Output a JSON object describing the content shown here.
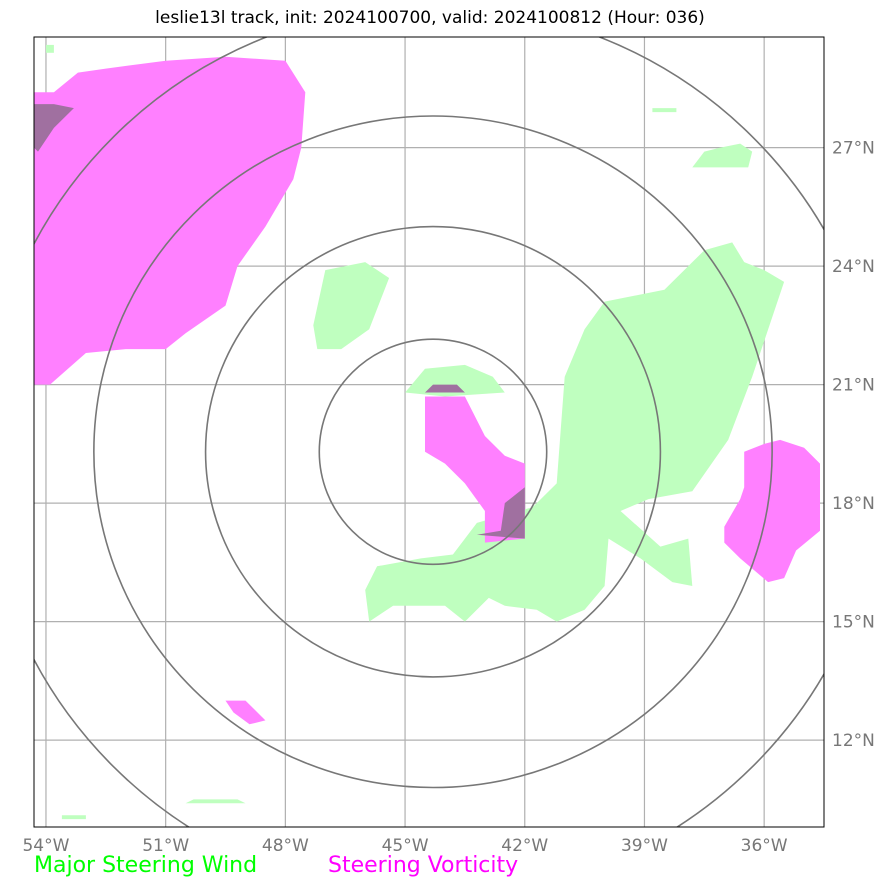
{
  "title": "leslie13l track, init: 2024100700, valid: 2024100812 (Hour: 036)",
  "map": {
    "lon_range": [
      -54.3,
      -34.5
    ],
    "lat_range": [
      9.8,
      29.8
    ],
    "lon_ticks": [
      {
        "value": -54,
        "label": "54°W"
      },
      {
        "value": -51,
        "label": "51°W"
      },
      {
        "value": -48,
        "label": "48°W"
      },
      {
        "value": -45,
        "label": "45°W"
      },
      {
        "value": -42,
        "label": "42°W"
      },
      {
        "value": -39,
        "label": "39°W"
      },
      {
        "value": -36,
        "label": "36°W"
      }
    ],
    "lat_ticks": [
      {
        "value": 12,
        "label": "12°N"
      },
      {
        "value": 15,
        "label": "15°N"
      },
      {
        "value": 18,
        "label": "18°N"
      },
      {
        "value": 21,
        "label": "21°N"
      },
      {
        "value": 24,
        "label": "24°N"
      },
      {
        "value": 27,
        "label": "27°N"
      }
    ],
    "storm_center": {
      "lon": -44.3,
      "lat": 19.3
    },
    "range_rings_deg": [
      2.85,
      5.7,
      8.5,
      11.3
    ],
    "colors": {
      "wind": "#bfffbf",
      "vorticity": "#ff80ff",
      "overlap": "#a070a0",
      "ring": "#777777",
      "grid": "#b0b0b0"
    },
    "wind_regions": [
      [
        [
          -45.0,
          20.8
        ],
        [
          -44.5,
          21.4
        ],
        [
          -43.5,
          21.5
        ],
        [
          -42.8,
          21.2
        ],
        [
          -42.5,
          20.8
        ],
        [
          -44.0,
          20.7
        ]
      ],
      [
        [
          -47.0,
          23.9
        ],
        [
          -46.0,
          24.1
        ],
        [
          -45.4,
          23.7
        ],
        [
          -45.9,
          22.4
        ],
        [
          -46.6,
          21.9
        ],
        [
          -47.2,
          21.9
        ],
        [
          -47.3,
          22.5
        ]
      ],
      [
        [
          -43.2,
          17.5
        ],
        [
          -41.8,
          17.9
        ],
        [
          -41.2,
          18.5
        ],
        [
          -41.0,
          21.2
        ],
        [
          -40.5,
          22.4
        ],
        [
          -40.0,
          23.1
        ],
        [
          -38.5,
          23.4
        ],
        [
          -37.5,
          24.4
        ],
        [
          -36.8,
          24.6
        ],
        [
          -36.5,
          24.1
        ],
        [
          -36.0,
          23.9
        ],
        [
          -35.5,
          23.6
        ],
        [
          -36.3,
          21.2
        ],
        [
          -36.6,
          20.4
        ],
        [
          -36.9,
          19.6
        ],
        [
          -37.8,
          18.3
        ],
        [
          -38.9,
          18.1
        ],
        [
          -39.6,
          17.8
        ],
        [
          -38.6,
          16.9
        ],
        [
          -37.9,
          17.1
        ],
        [
          -37.8,
          15.9
        ],
        [
          -38.3,
          16.0
        ],
        [
          -39.1,
          16.6
        ],
        [
          -39.9,
          17.1
        ],
        [
          -40.0,
          15.9
        ],
        [
          -40.5,
          15.3
        ],
        [
          -41.2,
          15.0
        ],
        [
          -41.7,
          15.3
        ],
        [
          -42.5,
          15.4
        ],
        [
          -42.9,
          15.6
        ],
        [
          -43.5,
          15.0
        ],
        [
          -44.0,
          15.4
        ],
        [
          -45.3,
          15.4
        ],
        [
          -45.9,
          15.0
        ],
        [
          -46.0,
          15.8
        ],
        [
          -45.7,
          16.4
        ],
        [
          -44.6,
          16.6
        ],
        [
          -43.8,
          16.7
        ]
      ],
      [
        [
          -37.8,
          26.5
        ],
        [
          -36.4,
          26.5
        ],
        [
          -36.3,
          26.9
        ],
        [
          -36.6,
          27.1
        ],
        [
          -37.1,
          27.0
        ],
        [
          -37.5,
          26.9
        ]
      ],
      [
        [
          -50.5,
          10.4
        ],
        [
          -49.0,
          10.4
        ],
        [
          -49.2,
          10.5
        ],
        [
          -50.3,
          10.5
        ]
      ],
      [
        [
          -54.0,
          29.4
        ],
        [
          -53.8,
          29.4
        ],
        [
          -53.8,
          29.6
        ],
        [
          -54.0,
          29.6
        ]
      ],
      [
        [
          -38.8,
          27.9
        ],
        [
          -38.2,
          27.9
        ],
        [
          -38.2,
          28.0
        ],
        [
          -38.8,
          28.0
        ]
      ],
      [
        [
          -53.6,
          10.0
        ],
        [
          -53.0,
          10.0
        ],
        [
          -53.0,
          10.1
        ],
        [
          -53.6,
          10.1
        ]
      ]
    ],
    "vort_regions": [
      [
        [
          -54.3,
          21.0
        ],
        [
          -53.9,
          21.0
        ],
        [
          -53.0,
          21.8
        ],
        [
          -52.0,
          21.9
        ],
        [
          -51.0,
          21.9
        ],
        [
          -50.5,
          22.3
        ],
        [
          -49.5,
          23.0
        ],
        [
          -49.2,
          24.0
        ],
        [
          -48.5,
          25.0
        ],
        [
          -47.8,
          26.2
        ],
        [
          -47.6,
          27.0
        ],
        [
          -47.5,
          28.4
        ],
        [
          -48.0,
          29.2
        ],
        [
          -49.5,
          29.3
        ],
        [
          -51.0,
          29.2
        ],
        [
          -52.5,
          29.0
        ],
        [
          -53.2,
          28.9
        ],
        [
          -53.8,
          28.4
        ],
        [
          -54.3,
          28.4
        ]
      ],
      [
        [
          -44.5,
          20.7
        ],
        [
          -43.5,
          20.7
        ],
        [
          -43.0,
          19.7
        ],
        [
          -42.5,
          19.2
        ],
        [
          -42.0,
          19.0
        ],
        [
          -42.0,
          17.1
        ],
        [
          -43.0,
          17.0
        ],
        [
          -43.0,
          17.8
        ],
        [
          -43.5,
          18.5
        ],
        [
          -44.0,
          19.0
        ],
        [
          -44.5,
          19.3
        ],
        [
          -44.5,
          20.0
        ]
      ],
      [
        [
          -36.5,
          19.3
        ],
        [
          -36.0,
          19.5
        ],
        [
          -35.6,
          19.6
        ],
        [
          -35.0,
          19.4
        ],
        [
          -34.6,
          19.0
        ],
        [
          -34.6,
          17.3
        ],
        [
          -35.2,
          16.8
        ],
        [
          -35.5,
          16.1
        ],
        [
          -35.9,
          16.0
        ],
        [
          -36.6,
          16.6
        ],
        [
          -37.0,
          17.0
        ],
        [
          -37.0,
          17.4
        ],
        [
          -36.6,
          18.1
        ],
        [
          -36.5,
          18.4
        ]
      ],
      [
        [
          -49.5,
          13.0
        ],
        [
          -49.0,
          13.0
        ],
        [
          -48.5,
          12.5
        ],
        [
          -48.9,
          12.4
        ],
        [
          -49.3,
          12.7
        ]
      ]
    ],
    "overlap_regions": [
      [
        [
          -54.3,
          28.1
        ],
        [
          -53.8,
          28.1
        ],
        [
          -53.3,
          28.0
        ],
        [
          -53.8,
          27.5
        ],
        [
          -54.2,
          26.9
        ],
        [
          -54.3,
          27.0
        ]
      ],
      [
        [
          -44.5,
          20.8
        ],
        [
          -43.5,
          20.8
        ],
        [
          -43.7,
          21.0
        ],
        [
          -44.3,
          21.0
        ]
      ],
      [
        [
          -42.0,
          18.4
        ],
        [
          -42.5,
          18.0
        ],
        [
          -42.6,
          17.3
        ],
        [
          -43.2,
          17.2
        ],
        [
          -42.0,
          17.1
        ]
      ]
    ]
  },
  "legend": {
    "wind_label": "Major Steering Wind",
    "vort_label": "Steering Vorticity"
  }
}
